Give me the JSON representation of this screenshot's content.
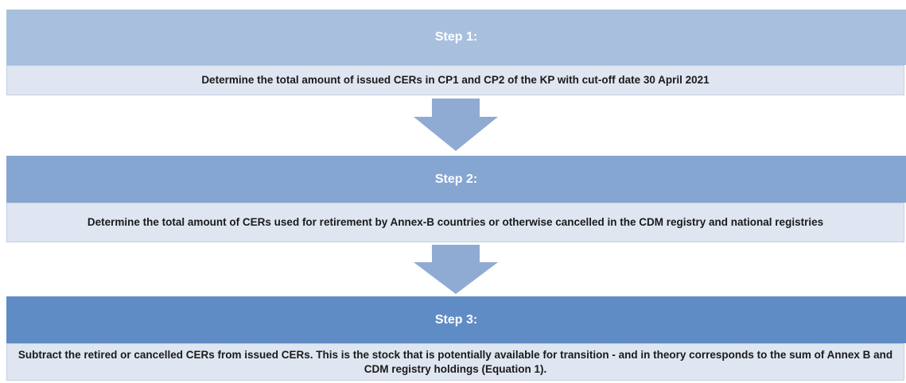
{
  "steps": [
    {
      "title": "Step 1:",
      "description": "Determine the total amount of issued CERs in CP1 and CP2 of the KP with cut-off date 30 April 2021"
    },
    {
      "title": "Step 2:",
      "description": "Determine the total amount of CERs used for retirement by Annex-B countries or otherwise cancelled in the CDM registry and national registries"
    },
    {
      "title": "Step 3:",
      "description": "Subtract the retired or cancelled CERs from issued CERs. This is the stock that is potentially available for transition - and in theory corresponds to the sum of Annex B and CDM registry holdings (Equation 1)."
    }
  ]
}
